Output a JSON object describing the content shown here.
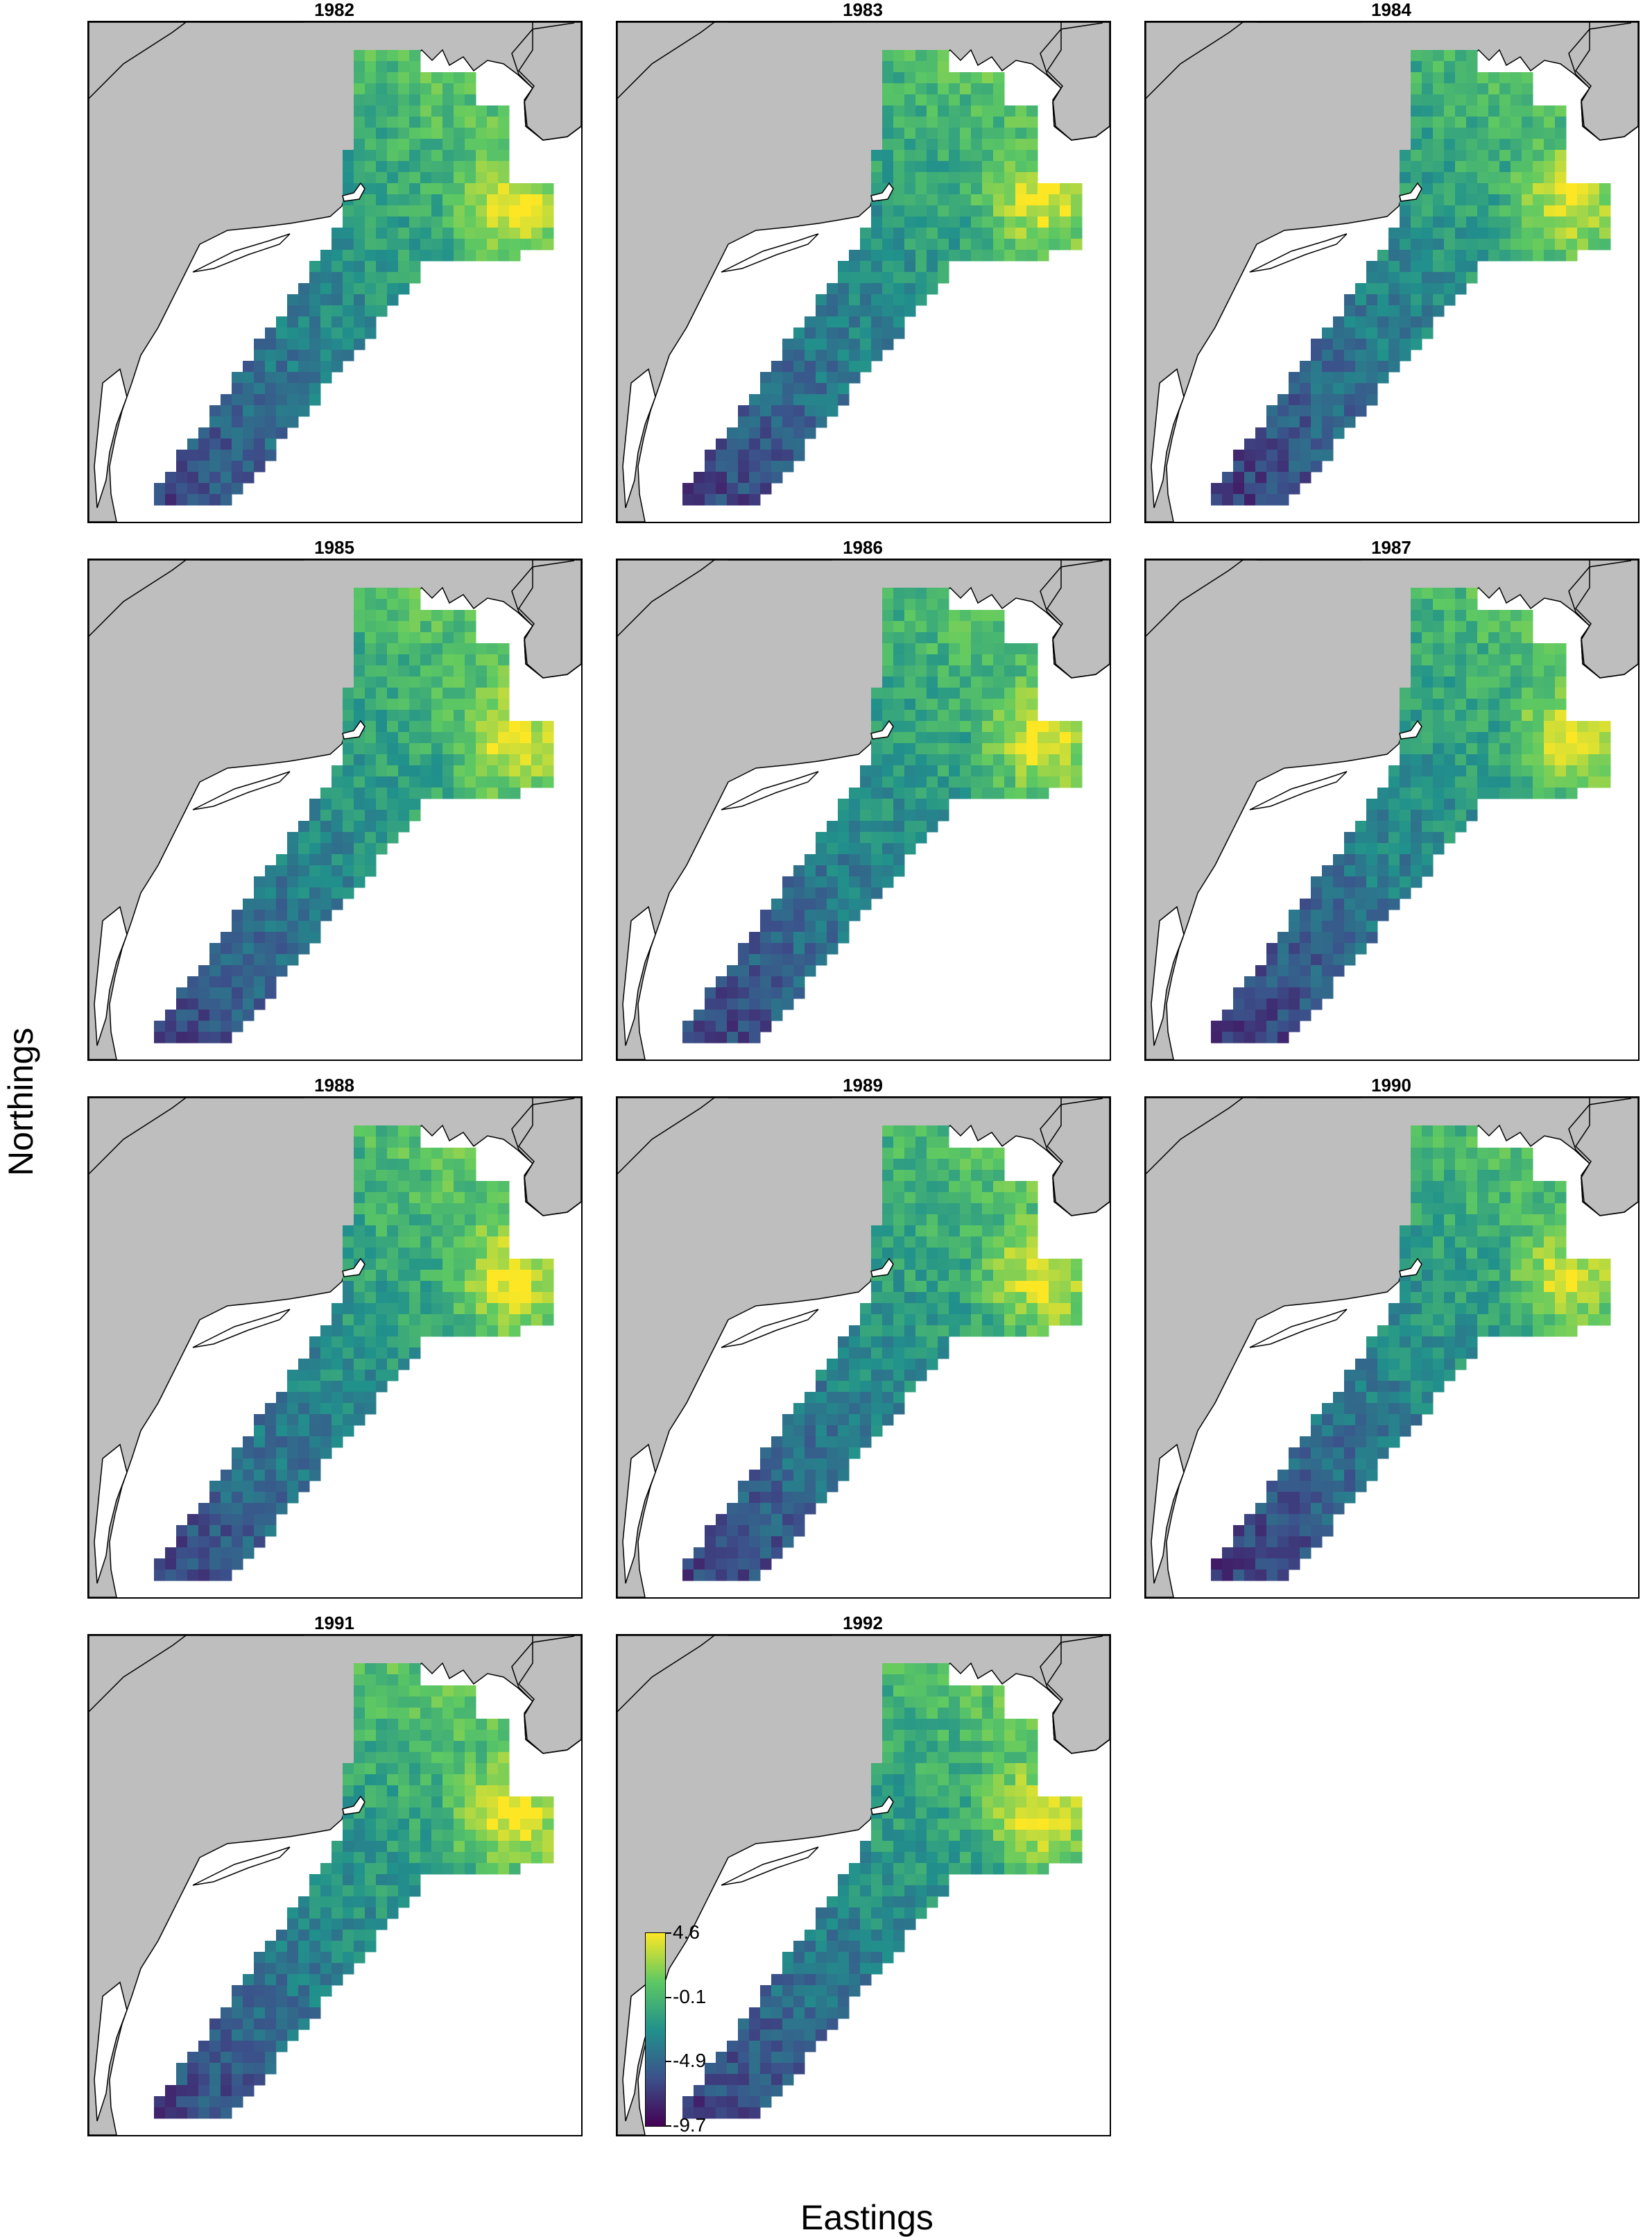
{
  "figure": {
    "x_axis_label": "Eastings",
    "y_axis_label": "Northings",
    "panels": [
      {
        "year": "1982"
      },
      {
        "year": "1983"
      },
      {
        "year": "1984"
      },
      {
        "year": "1985"
      },
      {
        "year": "1986"
      },
      {
        "year": "1987"
      },
      {
        "year": "1988"
      },
      {
        "year": "1989"
      },
      {
        "year": "1990"
      },
      {
        "year": "1991"
      },
      {
        "year": "1992"
      }
    ]
  },
  "legend": {
    "labels": [
      "4.6",
      "-0.1",
      "-4.9",
      "-9.7"
    ],
    "max": 4.6,
    "min": -9.7
  },
  "colors": {
    "land": "#bebebe",
    "water": "#ffffff",
    "coastline": "#000000",
    "scale": [
      "#440154",
      "#3b528b",
      "#21918c",
      "#5ec962",
      "#fde725"
    ]
  }
}
